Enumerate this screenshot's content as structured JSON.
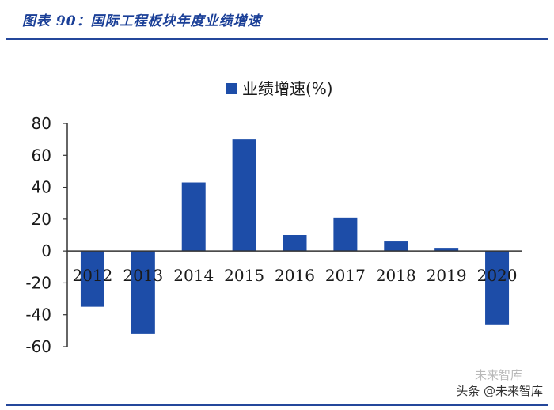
{
  "figure": {
    "title": "图表 90：国际工程板块年度业绩增速"
  },
  "chart_data": {
    "type": "bar",
    "categories": [
      "2012",
      "2013",
      "2014",
      "2015",
      "2016",
      "2017",
      "2018",
      "2019",
      "2020"
    ],
    "series": [
      {
        "name": "业绩增速(%)",
        "values": [
          -35,
          -52,
          43,
          70,
          10,
          21,
          6,
          2,
          -46
        ]
      }
    ],
    "ylim": [
      -60,
      80
    ],
    "yticks": [
      "80",
      "60",
      "40",
      "20",
      "0",
      "-20",
      "-40",
      "-60"
    ],
    "legend": "top-center",
    "bar_color": "#1d4da8",
    "title": "",
    "xlabel": "",
    "ylabel": ""
  },
  "watermark": {
    "primary": "头条 @未来智库",
    "secondary": "未来智库"
  },
  "colors": {
    "accent": "#24479b",
    "title": "#1a3f97"
  }
}
